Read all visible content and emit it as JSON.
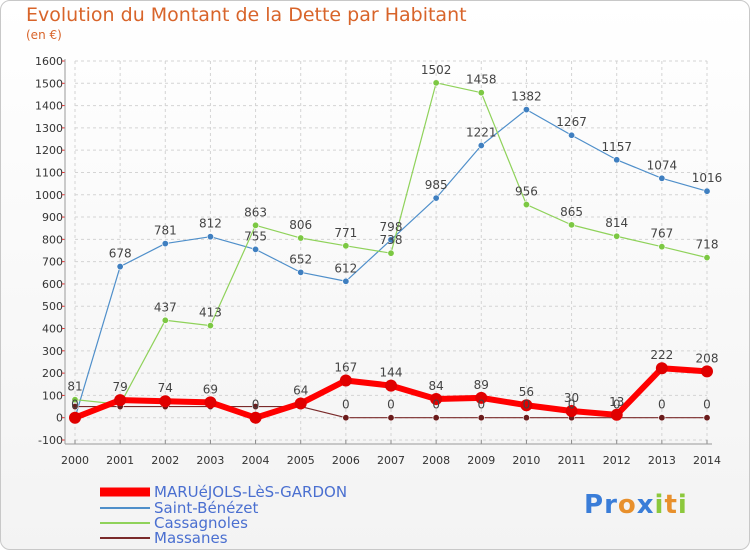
{
  "title": "Evolution du Montant de la Dette par Habitant",
  "subtitle": "(en €)",
  "logo": {
    "text": "Proxiti",
    "letters": [
      "P",
      "r",
      "o",
      "x",
      "i",
      "t",
      "i"
    ],
    "colors": [
      "#3a7dd8",
      "#3a7dd8",
      "#e8902c",
      "#3a7dd8",
      "#8cc83c",
      "#e8902c",
      "#8cc83c"
    ]
  },
  "chart_data": {
    "type": "line",
    "x": [
      "2000",
      "2001",
      "2002",
      "2003",
      "2004",
      "2005",
      "2006",
      "2007",
      "2008",
      "2009",
      "2010",
      "2011",
      "2012",
      "2013",
      "2014"
    ],
    "ylim": [
      -100,
      1600
    ],
    "yticks": [
      "-100",
      "0",
      "100",
      "200",
      "300",
      "400",
      "500",
      "600",
      "700",
      "800",
      "900",
      "1000",
      "1100",
      "1200",
      "1300",
      "1400",
      "1500",
      "1600"
    ],
    "grid": true,
    "legend_position": "bottom-left",
    "series": [
      {
        "name": "Saint-Bénézet",
        "color": "#4f8fca",
        "marker": "#3f7fc0",
        "width": 1.2,
        "values": [
          0,
          678,
          781,
          812,
          755,
          652,
          612,
          798,
          985,
          1221,
          1382,
          1267,
          1157,
          1074,
          1016
        ],
        "labels": [
          "",
          "678",
          "781",
          "812",
          "755",
          "652",
          "612",
          "798",
          "985",
          "1221",
          "1382",
          "1267",
          "1157",
          "1074",
          "1016"
        ]
      },
      {
        "name": "Cassagnoles",
        "color": "#8fd25a",
        "marker": "#7cc843",
        "width": 1.2,
        "values": [
          81,
          60,
          437,
          413,
          863,
          806,
          771,
          738,
          1502,
          1458,
          956,
          865,
          814,
          767,
          718
        ],
        "labels": [
          "81",
          "",
          "437",
          "413",
          "863",
          "806",
          "771",
          "738",
          "1502",
          "1458",
          "956",
          "865",
          "814",
          "767",
          "718"
        ]
      },
      {
        "name": "Massanes",
        "color": "#7a2a2a",
        "marker": "#6b1c1c",
        "width": 1.2,
        "values": [
          50,
          50,
          50,
          50,
          50,
          50,
          0,
          0,
          0,
          0,
          0,
          0,
          0,
          0,
          0
        ],
        "labels": [
          "",
          "",
          "",
          "",
          "",
          "",
          "0",
          "0",
          "0",
          "0",
          "0",
          "0",
          "0",
          "0",
          "0"
        ]
      },
      {
        "name": "MARUéJOLS-LèS-GARDON",
        "color": "#ff0000",
        "marker": "#e00000",
        "width": 6,
        "values": [
          0,
          79,
          74,
          69,
          0,
          64,
          167,
          144,
          84,
          89,
          56,
          30,
          13,
          222,
          208
        ],
        "labels": [
          "0",
          "79",
          "74",
          "69",
          "0",
          "64",
          "167",
          "144",
          "84",
          "89",
          "56",
          "30",
          "13",
          "222",
          "208"
        ]
      }
    ],
    "legend_order": [
      3,
      0,
      1,
      2
    ]
  }
}
